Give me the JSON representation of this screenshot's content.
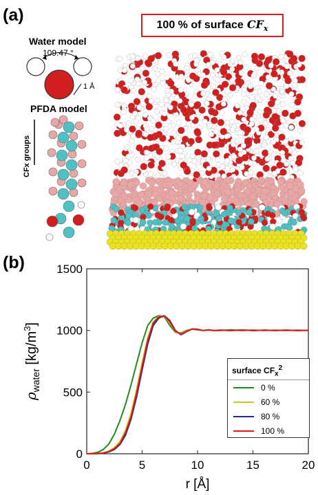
{
  "panel_a": {
    "letter": "(a)",
    "title_prefix": "100 % of surface",
    "title_math": "CF",
    "title_math_sub": "x",
    "water_model_label": "Water model",
    "angle_label": "109.47 °",
    "scale_label": "1 Å",
    "pfda_label": "PFDA model",
    "cfx_groups_label": "CFx groups",
    "colors": {
      "oxygen": "#d11f1f",
      "hydrogen": "#ffffff",
      "fluorine": "#e8a7a7",
      "carbon": "#4fc1c4",
      "gold": "#e9e222"
    }
  },
  "panel_b": {
    "letter": "(b)"
  },
  "chart_data": {
    "type": "line",
    "xlabel": "r [Å]",
    "ylabel": "ρ_water [kg/m^3]",
    "xlim": [
      0,
      20
    ],
    "ylim": [
      0,
      1500
    ],
    "xticks": [
      0,
      5,
      10,
      15,
      20
    ],
    "yticks": [
      0,
      500,
      1000,
      1500
    ],
    "legend_title": "surface CF",
    "legend_title_sub": "x",
    "legend_title_sub2": "2",
    "legend_position": "bottom-right",
    "grid": false,
    "x": [
      0,
      0.5,
      1,
      1.5,
      2,
      2.5,
      3,
      3.5,
      4,
      4.5,
      5,
      5.5,
      6,
      6.5,
      7,
      7.5,
      8,
      8.5,
      9,
      9.5,
      10,
      10.5,
      11,
      11.5,
      12,
      13,
      14,
      15,
      16,
      17,
      18,
      19,
      20
    ],
    "series": [
      {
        "name": "0 %",
        "color": "#1f8a1f",
        "values": [
          0,
          3,
          12,
          35,
          80,
          160,
          270,
          400,
          560,
          730,
          900,
          1040,
          1100,
          1120,
          1110,
          1040,
          985,
          980,
          1000,
          1010,
          1005,
          1000,
          1005,
          1000,
          1000,
          1005,
          1000,
          1003,
          1000,
          1002,
          1000,
          1002,
          1000
        ]
      },
      {
        "name": "60 %",
        "color": "#c8c81e",
        "values": [
          0,
          0,
          2,
          8,
          22,
          50,
          100,
          190,
          330,
          520,
          740,
          940,
          1070,
          1115,
          1115,
          1060,
          990,
          975,
          995,
          1010,
          1008,
          1000,
          1003,
          1000,
          1002,
          1000,
          1004,
          1000,
          1002,
          1000,
          1003,
          1000,
          1002
        ]
      },
      {
        "name": "80 %",
        "color": "#1f2b8a",
        "values": [
          0,
          0,
          1,
          5,
          15,
          35,
          75,
          150,
          280,
          460,
          680,
          890,
          1040,
          1100,
          1120,
          1080,
          1000,
          965,
          990,
          1012,
          1010,
          1000,
          1004,
          1000,
          1002,
          1000,
          1003,
          1000,
          1002,
          1000,
          1002,
          1000,
          1001
        ]
      },
      {
        "name": "100 %",
        "color": "#e01818",
        "values": [
          0,
          0,
          1,
          6,
          18,
          42,
          85,
          170,
          300,
          490,
          710,
          920,
          1060,
          1110,
          1118,
          1070,
          995,
          970,
          992,
          1012,
          1008,
          1000,
          1004,
          1000,
          1002,
          1000,
          1003,
          1000,
          1002,
          1000,
          1002,
          1000,
          1001
        ]
      }
    ]
  }
}
